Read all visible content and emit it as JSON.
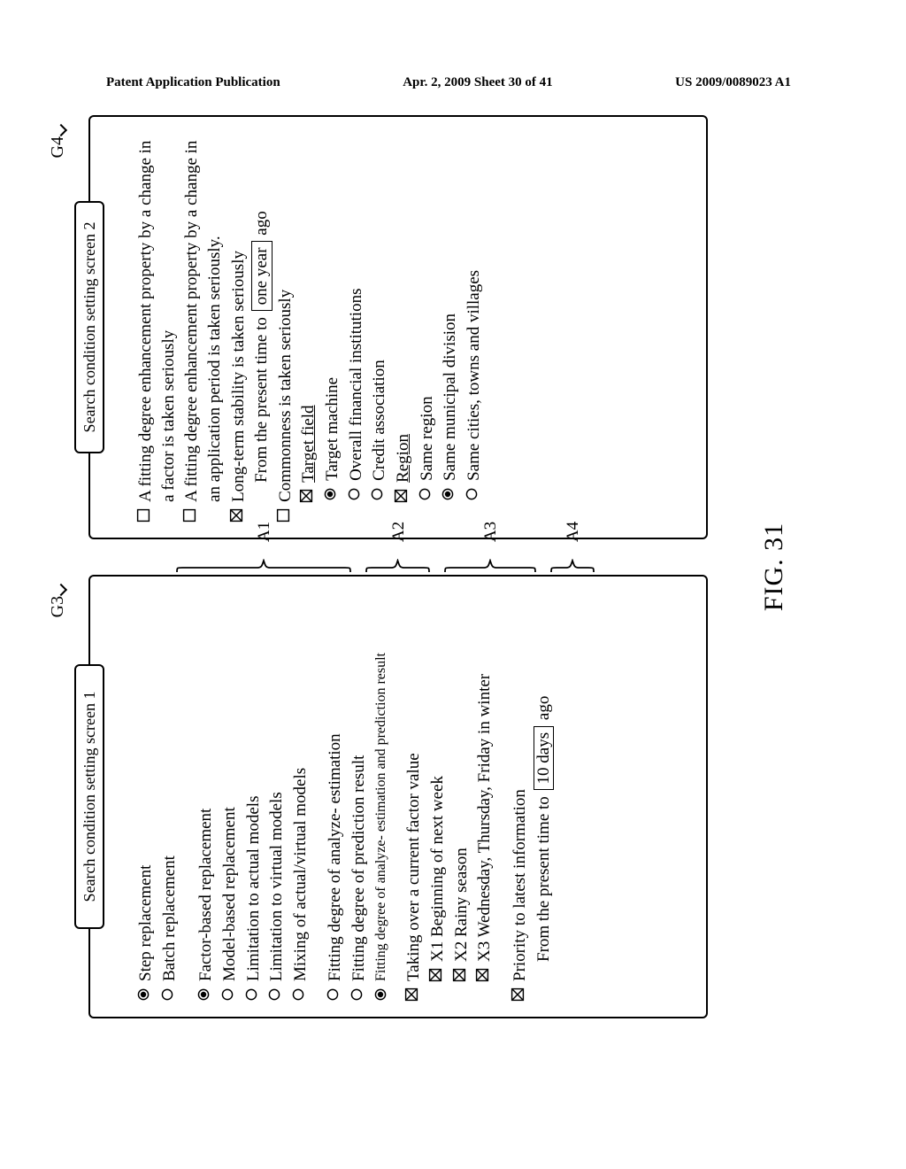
{
  "header": {
    "left": "Patent Application Publication",
    "center": "Apr. 2, 2009  Sheet 30 of 41",
    "right": "US 2009/0089023 A1"
  },
  "figure_caption": "FIG. 31",
  "panel1": {
    "label": "G3",
    "title": "Search condition setting screen 1",
    "groups": [
      {
        "brace": "A1",
        "lines": [
          {
            "mark": "radio-filled",
            "text": "Step replacement"
          },
          {
            "mark": "radio-empty",
            "text": "Batch replacement"
          },
          {
            "mark": "gap",
            "text": ""
          },
          {
            "mark": "radio-filled",
            "text": "Factor-based replacement"
          },
          {
            "mark": "radio-empty",
            "text": "Model-based replacement"
          },
          {
            "mark": "radio-empty",
            "text": "Limitation to actual models"
          },
          {
            "mark": "radio-empty",
            "text": "Limitation to virtual models"
          },
          {
            "mark": "radio-empty",
            "text": "Mixing of actual/virtual models"
          }
        ]
      },
      {
        "brace": "A2",
        "lines": [
          {
            "mark": "radio-empty",
            "text": "Fitting degree of analyze- estimation"
          },
          {
            "mark": "radio-empty",
            "text": "Fitting degree of prediction result"
          },
          {
            "mark": "radio-filled",
            "text": "Fitting degree of analyze- estimation and prediction result",
            "small": true
          }
        ]
      },
      {
        "brace": "A3",
        "lines": [
          {
            "mark": "check-on",
            "text": "Taking over a current factor value"
          },
          {
            "mark": "check-on",
            "indent": true,
            "text": "X1 Beginning of next week"
          },
          {
            "mark": "check-on",
            "indent": true,
            "text": "X2 Rainy season"
          },
          {
            "mark": "check-on",
            "indent": true,
            "text": "X3 Wednesday, Thursday, Friday in winter"
          }
        ]
      },
      {
        "brace": "A4",
        "lines": [
          {
            "mark": "check-on",
            "text": "Priority to latest information"
          },
          {
            "mark": "none",
            "indent": true,
            "composite": true,
            "pre": "From the present time to ",
            "box": "10 days",
            "post": " ago"
          }
        ]
      }
    ]
  },
  "panel2": {
    "label": "G4",
    "title": "Search condition setting screen 2",
    "lines": [
      {
        "mark": "check-off",
        "text": "A fitting degree enhancement property by a change in a factor is taken seriously"
      },
      {
        "mark": "check-off",
        "text": "A fitting degree enhancement property by a change in an application period is taken seriously."
      },
      {
        "mark": "check-on",
        "text": "Long-term stability is taken seriously"
      },
      {
        "mark": "none",
        "indent": true,
        "composite": true,
        "pre": "From the present time to ",
        "box": "one year",
        "post": " ago"
      },
      {
        "mark": "check-off",
        "text": "Commonness is taken seriously"
      },
      {
        "mark": "check-on",
        "indent": true,
        "text": "Target field",
        "underline": true
      },
      {
        "mark": "radio-filled",
        "indent2": true,
        "text": "Target machine"
      },
      {
        "mark": "radio-empty",
        "indent2": true,
        "text": "Overall financial institutions"
      },
      {
        "mark": "radio-empty",
        "indent2": true,
        "text": "Credit association"
      },
      {
        "mark": "check-on",
        "indent": true,
        "text": "Region",
        "underline": true
      },
      {
        "mark": "radio-empty",
        "indent2": true,
        "text": "Same region"
      },
      {
        "mark": "radio-filled",
        "indent2": true,
        "text": "Same municipal division"
      },
      {
        "mark": "radio-empty",
        "indent2": true,
        "text": "Same cities, towns and villages"
      }
    ]
  },
  "colors": {
    "fg": "#000000",
    "bg": "#ffffff"
  }
}
